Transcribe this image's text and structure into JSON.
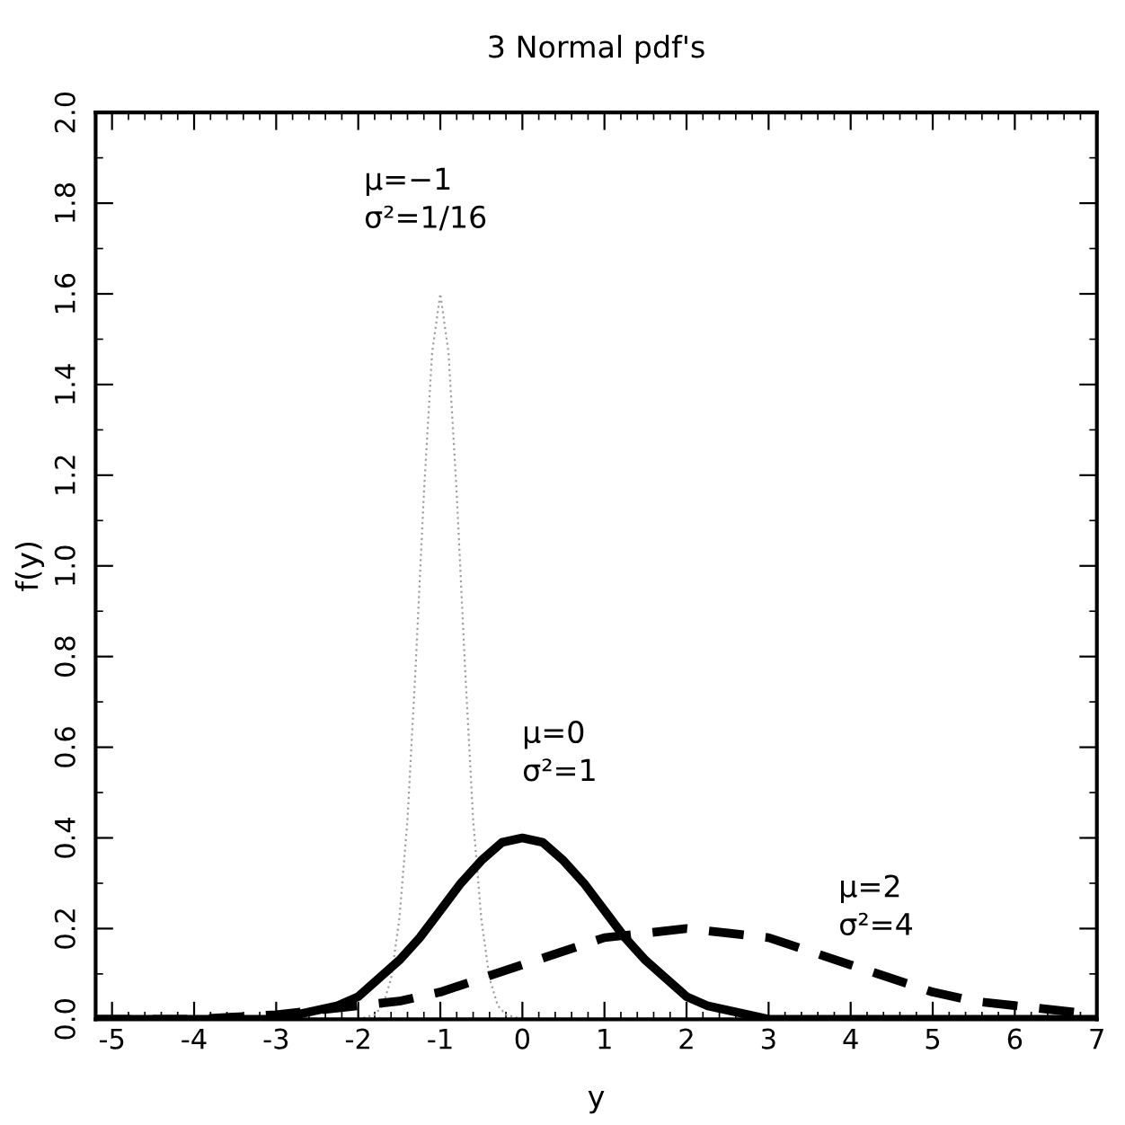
{
  "chart_data": {
    "type": "line",
    "title": "3 Normal pdf's",
    "xlabel": "y",
    "ylabel": "f(y)",
    "xlim": [
      -5.2,
      7
    ],
    "xticks": [
      -5,
      -4,
      -3,
      -2,
      -1,
      0,
      1,
      2,
      3,
      4,
      5,
      6,
      7
    ],
    "ylim": [
      0,
      2.0
    ],
    "yticks": [
      {
        "value": 0,
        "label": "0.0"
      },
      0.2,
      0.4,
      0.6,
      0.8,
      {
        "value": 1.0,
        "label": "1.0"
      },
      1.2,
      1.4,
      1.6,
      1.8,
      {
        "value": 2.0,
        "label": "2.0"
      }
    ],
    "grid": false,
    "legend": false,
    "series": [
      {
        "color": "#a0a0a0",
        "line_style": "dotted",
        "x": [
          -2.0,
          -1.8,
          -1.7,
          -1.6,
          -1.5,
          -1.4,
          -1.3,
          -1.2,
          -1.1,
          -1.0,
          -0.9,
          -0.8,
          -0.7,
          -0.6,
          -0.5,
          -0.4,
          -0.3,
          -0.2,
          0.0
        ],
        "values": [
          0.0,
          0.01,
          0.03,
          0.09,
          0.22,
          0.44,
          0.78,
          1.16,
          1.47,
          1.6,
          1.47,
          1.16,
          0.78,
          0.44,
          0.22,
          0.09,
          0.03,
          0.01,
          0.0
        ]
      },
      {
        "color": "#000000",
        "line_style": "solid",
        "x": [
          -5.2,
          -4.0,
          -3.5,
          -3.0,
          -2.75,
          -2.5,
          -2.25,
          -2.0,
          -1.75,
          -1.5,
          -1.25,
          -1.0,
          -0.75,
          -0.5,
          -0.25,
          0.0,
          0.25,
          0.5,
          0.75,
          1.0,
          1.25,
          1.5,
          1.75,
          2.0,
          2.25,
          2.5,
          2.75,
          3.0,
          3.5,
          4.0,
          7.0
        ],
        "values": [
          0.0,
          0.0,
          0.0,
          0.0,
          0.01,
          0.02,
          0.03,
          0.05,
          0.09,
          0.13,
          0.18,
          0.24,
          0.3,
          0.35,
          0.39,
          0.4,
          0.39,
          0.35,
          0.3,
          0.24,
          0.18,
          0.13,
          0.09,
          0.05,
          0.03,
          0.02,
          0.01,
          0.0,
          0.0,
          0.0,
          0.0
        ]
      },
      {
        "color": "#000000",
        "line_style": "dashed",
        "x": [
          -5.2,
          -4.0,
          -3.0,
          -2.0,
          -1.5,
          -1.0,
          -0.5,
          0.0,
          0.5,
          1.0,
          1.5,
          2.0,
          2.5,
          3.0,
          3.5,
          4.0,
          4.5,
          5.0,
          5.5,
          6.0,
          7.0
        ],
        "values": [
          0.0,
          0.0,
          0.01,
          0.03,
          0.04,
          0.06,
          0.09,
          0.12,
          0.15,
          0.18,
          0.19,
          0.2,
          0.19,
          0.18,
          0.15,
          0.12,
          0.09,
          0.06,
          0.04,
          0.03,
          0.01
        ]
      }
    ],
    "annotations": [
      "μ=−1\nσ²=1/16",
      "μ=0\nσ²=1",
      "μ=2\nσ²=4"
    ]
  }
}
